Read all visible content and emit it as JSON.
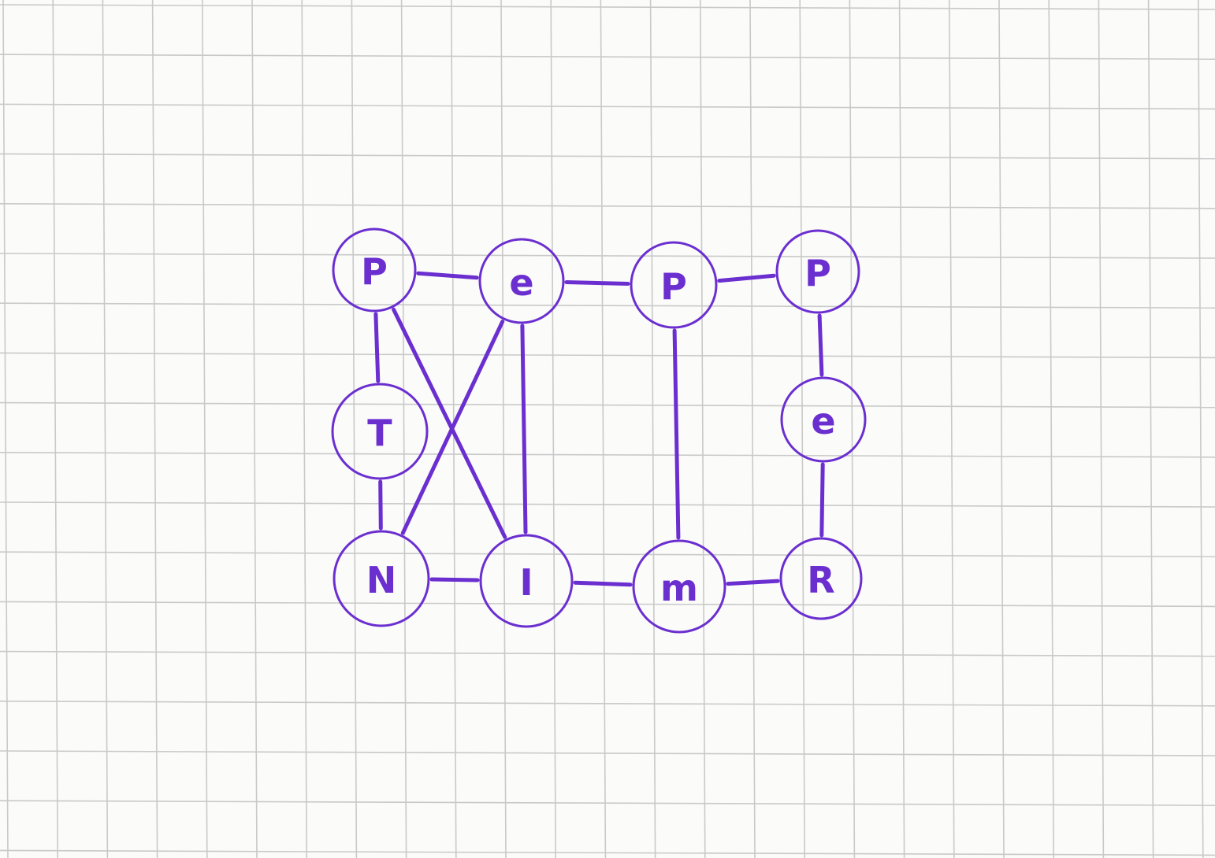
{
  "diagram": {
    "ink_color": "#6b2fd0",
    "grid_color": "#c9c9c9",
    "paper_color": "#fbfbfa",
    "nodes": [
      {
        "id": "n1",
        "label": "P"
      },
      {
        "id": "n2",
        "label": "e"
      },
      {
        "id": "n3",
        "label": "P"
      },
      {
        "id": "n4",
        "label": "P"
      },
      {
        "id": "n5",
        "label": "T"
      },
      {
        "id": "n6",
        "label": "e"
      },
      {
        "id": "n7",
        "label": "N"
      },
      {
        "id": "n8",
        "label": "I"
      },
      {
        "id": "n9",
        "label": "m"
      },
      {
        "id": "n10",
        "label": "R"
      }
    ],
    "edges": [
      {
        "from": "n1",
        "to": "n2"
      },
      {
        "from": "n2",
        "to": "n3"
      },
      {
        "from": "n3",
        "to": "n4"
      },
      {
        "from": "n1",
        "to": "n5"
      },
      {
        "from": "n5",
        "to": "n7"
      },
      {
        "from": "n1",
        "to": "n8"
      },
      {
        "from": "n2",
        "to": "n7"
      },
      {
        "from": "n2",
        "to": "n8"
      },
      {
        "from": "n3",
        "to": "n9"
      },
      {
        "from": "n4",
        "to": "n6"
      },
      {
        "from": "n6",
        "to": "n10"
      },
      {
        "from": "n7",
        "to": "n8"
      },
      {
        "from": "n8",
        "to": "n9"
      },
      {
        "from": "n9",
        "to": "n10"
      }
    ]
  }
}
